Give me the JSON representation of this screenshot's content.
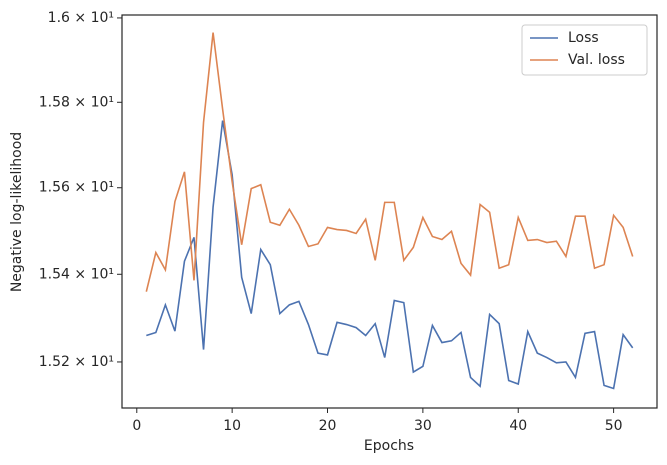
{
  "chart_data": {
    "type": "line",
    "x_label": "Epochs",
    "y_label": "Negative log-likelihood",
    "x": [
      1,
      2,
      3,
      4,
      5,
      6,
      7,
      8,
      9,
      10,
      11,
      12,
      13,
      14,
      15,
      16,
      17,
      18,
      19,
      20,
      21,
      22,
      23,
      24,
      25,
      26,
      27,
      28,
      29,
      30,
      31,
      32,
      33,
      34,
      35,
      36,
      37,
      38,
      39,
      40,
      41,
      42,
      43,
      44,
      45,
      46,
      47,
      48,
      49,
      50,
      51,
      52
    ],
    "series": [
      {
        "name": "Loss",
        "color": "#4c72b0",
        "values": [
          15.26,
          15.267,
          15.33,
          15.27,
          15.43,
          15.485,
          15.228,
          15.555,
          15.757,
          15.63,
          15.393,
          15.31,
          15.457,
          15.422,
          15.31,
          15.33,
          15.338,
          15.285,
          15.22,
          15.216,
          15.29,
          15.285,
          15.278,
          15.26,
          15.287,
          15.21,
          15.34,
          15.335,
          15.177,
          15.19,
          15.283,
          15.244,
          15.248,
          15.267,
          15.165,
          15.145,
          15.308,
          15.287,
          15.158,
          15.15,
          15.269,
          15.22,
          15.21,
          15.198,
          15.2,
          15.165,
          15.265,
          15.269,
          15.147,
          15.14,
          15.262,
          15.232
        ]
      },
      {
        "name": "Val. loss",
        "color": "#dd8452",
        "values": [
          15.36,
          15.45,
          15.41,
          15.568,
          15.637,
          15.386,
          15.753,
          15.965,
          15.784,
          15.614,
          15.468,
          15.598,
          15.607,
          15.52,
          15.513,
          15.55,
          15.513,
          15.464,
          15.47,
          15.508,
          15.503,
          15.501,
          15.494,
          15.527,
          15.432,
          15.566,
          15.566,
          15.432,
          15.462,
          15.531,
          15.487,
          15.48,
          15.499,
          15.425,
          15.398,
          15.561,
          15.543,
          15.414,
          15.422,
          15.531,
          15.478,
          15.48,
          15.473,
          15.476,
          15.441,
          15.534,
          15.534,
          15.414,
          15.422,
          15.536,
          15.508,
          15.441
        ]
      }
    ],
    "xlim": [
      -1.55,
      54.55
    ],
    "xticks": [
      0,
      10,
      20,
      30,
      40,
      50
    ],
    "ylim": [
      15.096,
      16.007
    ],
    "yscale": "log",
    "yticks": [
      {
        "value": 15.2,
        "label": "1.52 × 10¹"
      },
      {
        "value": 15.4,
        "label": "1.54 × 10¹"
      },
      {
        "value": 15.6,
        "label": "1.56 × 10¹"
      },
      {
        "value": 15.8,
        "label": "1.58 × 10¹"
      },
      {
        "value": 16,
        "label": "1.6 × 10¹"
      }
    ],
    "legend": "upper right",
    "grid": false
  }
}
